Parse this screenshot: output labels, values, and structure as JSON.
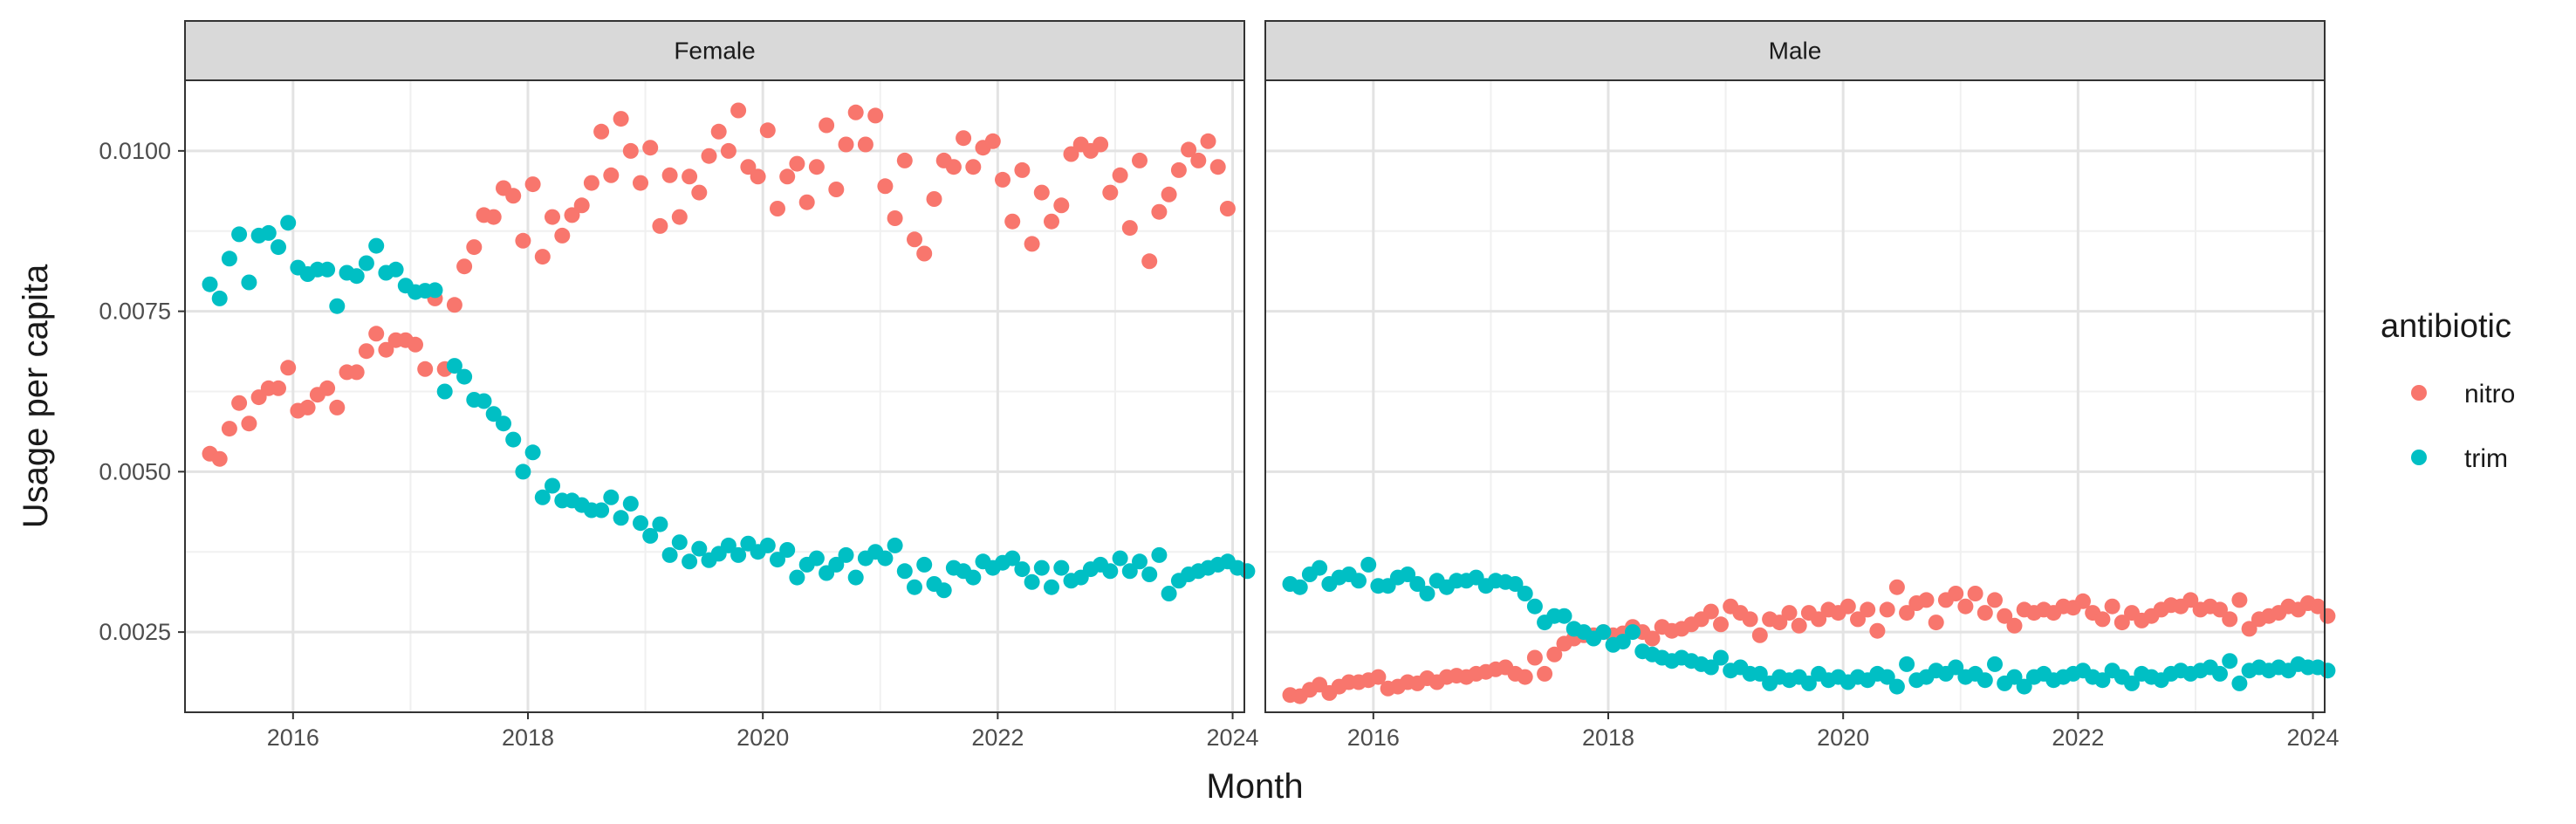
{
  "chart_data": {
    "type": "scatter",
    "facets": [
      "Female",
      "Male"
    ],
    "xlabel": "Month",
    "ylabel": "Usage per capita",
    "x_ticks": [
      "2016",
      "2018",
      "2020",
      "2022",
      "2024"
    ],
    "y_ticks": [
      "0.0025",
      "0.0050",
      "0.0075",
      "0.0100"
    ],
    "x_range": [
      2015.08,
      2024.1
    ],
    "y_range": [
      0.00125,
      0.0111
    ],
    "grid": true,
    "legend_position": "right",
    "legend": {
      "title": "antibiotic",
      "entries": [
        {
          "label": "nitro",
          "color": "#F8766D"
        },
        {
          "label": "trim",
          "color": "#00BFC4"
        }
      ]
    },
    "start": "2015-04",
    "series": [
      {
        "facet": "Female",
        "name": "nitro",
        "color": "#F8766D",
        "values": [
          0.00528,
          0.0052,
          0.00567,
          0.00607,
          0.00575,
          0.00616,
          0.0063,
          0.0063,
          0.00662,
          0.00595,
          0.006,
          0.0062,
          0.0063,
          0.006,
          0.00655,
          0.00655,
          0.00688,
          0.00715,
          0.0069,
          0.00705,
          0.00705,
          0.00698,
          0.0066,
          0.0077,
          0.0066,
          0.0076,
          0.0082,
          0.0085,
          0.009,
          0.00897,
          0.00942,
          0.0093,
          0.0086,
          0.00948,
          0.00835,
          0.00897,
          0.00868,
          0.009,
          0.00915,
          0.0095,
          0.0103,
          0.00962,
          0.0105,
          0.01,
          0.0095,
          0.01005,
          0.00883,
          0.00962,
          0.00897,
          0.0096,
          0.00935,
          0.00992,
          0.0103,
          0.01,
          0.01063,
          0.00975,
          0.0096,
          0.01032,
          0.0091,
          0.0096,
          0.0098,
          0.0092,
          0.00975,
          0.0104,
          0.0094,
          0.0101,
          0.0106,
          0.0101,
          0.01055,
          0.00945,
          0.00895,
          0.00985,
          0.00862,
          0.0084,
          0.00925,
          0.00985,
          0.00975,
          0.0102,
          0.00975,
          0.01005,
          0.01015,
          0.00955,
          0.0089,
          0.0097,
          0.00855,
          0.00935,
          0.0089,
          0.00915,
          0.00995,
          0.0101,
          0.01,
          0.0101,
          0.00935,
          0.00962,
          0.0088,
          0.00985,
          0.00828,
          0.00905,
          0.00932,
          0.0097,
          0.01002,
          0.00985,
          0.01015,
          0.00975,
          0.0091
        ]
      },
      {
        "facet": "Female",
        "name": "trim",
        "color": "#00BFC4",
        "values": [
          0.00792,
          0.0077,
          0.00832,
          0.0087,
          0.00795,
          0.00868,
          0.00872,
          0.0085,
          0.00888,
          0.00818,
          0.00808,
          0.00815,
          0.00815,
          0.00758,
          0.0081,
          0.00805,
          0.00825,
          0.00852,
          0.0081,
          0.00815,
          0.0079,
          0.0078,
          0.00782,
          0.00783,
          0.00625,
          0.00665,
          0.00648,
          0.00612,
          0.0061,
          0.0059,
          0.00575,
          0.0055,
          0.005,
          0.0053,
          0.0046,
          0.00478,
          0.00455,
          0.00455,
          0.00448,
          0.0044,
          0.0044,
          0.0046,
          0.00428,
          0.0045,
          0.0042,
          0.004,
          0.00418,
          0.0037,
          0.0039,
          0.0036,
          0.0038,
          0.00362,
          0.00372,
          0.00385,
          0.0037,
          0.00388,
          0.00375,
          0.00385,
          0.00363,
          0.00378,
          0.00335,
          0.00355,
          0.00365,
          0.00342,
          0.00355,
          0.0037,
          0.00335,
          0.00365,
          0.00375,
          0.00365,
          0.00385,
          0.00345,
          0.0032,
          0.00355,
          0.00325,
          0.00315,
          0.0035,
          0.00345,
          0.00335,
          0.0036,
          0.0035,
          0.00358,
          0.00365,
          0.00348,
          0.00328,
          0.0035,
          0.0032,
          0.0035,
          0.0033,
          0.00335,
          0.00348,
          0.00355,
          0.00345,
          0.00365,
          0.00345,
          0.0036,
          0.0034,
          0.0037,
          0.0031,
          0.0033,
          0.0034,
          0.00345,
          0.0035,
          0.00355,
          0.0036,
          0.0035,
          0.00345
        ]
      },
      {
        "facet": "Male",
        "name": "nitro",
        "color": "#F8766D",
        "values": [
          0.00152,
          0.0015,
          0.0016,
          0.00168,
          0.00155,
          0.00165,
          0.00172,
          0.00172,
          0.00175,
          0.0018,
          0.00162,
          0.00165,
          0.00172,
          0.0017,
          0.00178,
          0.00172,
          0.0018,
          0.00182,
          0.0018,
          0.00185,
          0.00188,
          0.00192,
          0.00195,
          0.00185,
          0.0018,
          0.0021,
          0.00185,
          0.00215,
          0.00232,
          0.0024,
          0.00245,
          0.00245,
          0.0025,
          0.00245,
          0.00248,
          0.00258,
          0.0025,
          0.0024,
          0.00258,
          0.00252,
          0.00255,
          0.00262,
          0.0027,
          0.00282,
          0.00262,
          0.0029,
          0.0028,
          0.0027,
          0.00245,
          0.0027,
          0.00265,
          0.0028,
          0.0026,
          0.0028,
          0.0027,
          0.00285,
          0.0028,
          0.0029,
          0.0027,
          0.00285,
          0.00252,
          0.00285,
          0.0032,
          0.0028,
          0.00295,
          0.003,
          0.00265,
          0.003,
          0.0031,
          0.0029,
          0.0031,
          0.0028,
          0.003,
          0.00275,
          0.0026,
          0.00285,
          0.0028,
          0.00285,
          0.0028,
          0.0029,
          0.00288,
          0.00298,
          0.0028,
          0.0027,
          0.0029,
          0.00265,
          0.0028,
          0.00268,
          0.00275,
          0.00285,
          0.00292,
          0.0029,
          0.003,
          0.00285,
          0.0029,
          0.00285,
          0.0027,
          0.003,
          0.00255,
          0.0027,
          0.00275,
          0.0028,
          0.0029,
          0.00285,
          0.00295,
          0.0029,
          0.00275
        ]
      },
      {
        "facet": "Male",
        "name": "trim",
        "color": "#00BFC4",
        "values": [
          0.00325,
          0.0032,
          0.0034,
          0.0035,
          0.00325,
          0.00335,
          0.0034,
          0.0033,
          0.00355,
          0.00322,
          0.00322,
          0.00335,
          0.0034,
          0.00325,
          0.0031,
          0.0033,
          0.0032,
          0.0033,
          0.0033,
          0.00335,
          0.00322,
          0.0033,
          0.00328,
          0.00325,
          0.0031,
          0.0029,
          0.00265,
          0.00275,
          0.00275,
          0.00255,
          0.0025,
          0.0024,
          0.0025,
          0.0023,
          0.00235,
          0.0025,
          0.0022,
          0.00215,
          0.0021,
          0.00205,
          0.0021,
          0.00205,
          0.002,
          0.00195,
          0.0021,
          0.0019,
          0.00195,
          0.00185,
          0.00185,
          0.0017,
          0.0018,
          0.00175,
          0.0018,
          0.0017,
          0.00185,
          0.00175,
          0.0018,
          0.00172,
          0.0018,
          0.00175,
          0.00185,
          0.0018,
          0.00165,
          0.002,
          0.00175,
          0.0018,
          0.0019,
          0.00185,
          0.00195,
          0.0018,
          0.00185,
          0.00175,
          0.002,
          0.0017,
          0.0018,
          0.00165,
          0.0018,
          0.00185,
          0.00175,
          0.0018,
          0.00185,
          0.0019,
          0.0018,
          0.00175,
          0.0019,
          0.0018,
          0.0017,
          0.00185,
          0.0018,
          0.00175,
          0.00185,
          0.0019,
          0.00185,
          0.0019,
          0.00195,
          0.00185,
          0.00205,
          0.0017,
          0.0019,
          0.00195,
          0.0019,
          0.00195,
          0.0019,
          0.002,
          0.00195,
          0.00195,
          0.0019
        ]
      }
    ]
  }
}
